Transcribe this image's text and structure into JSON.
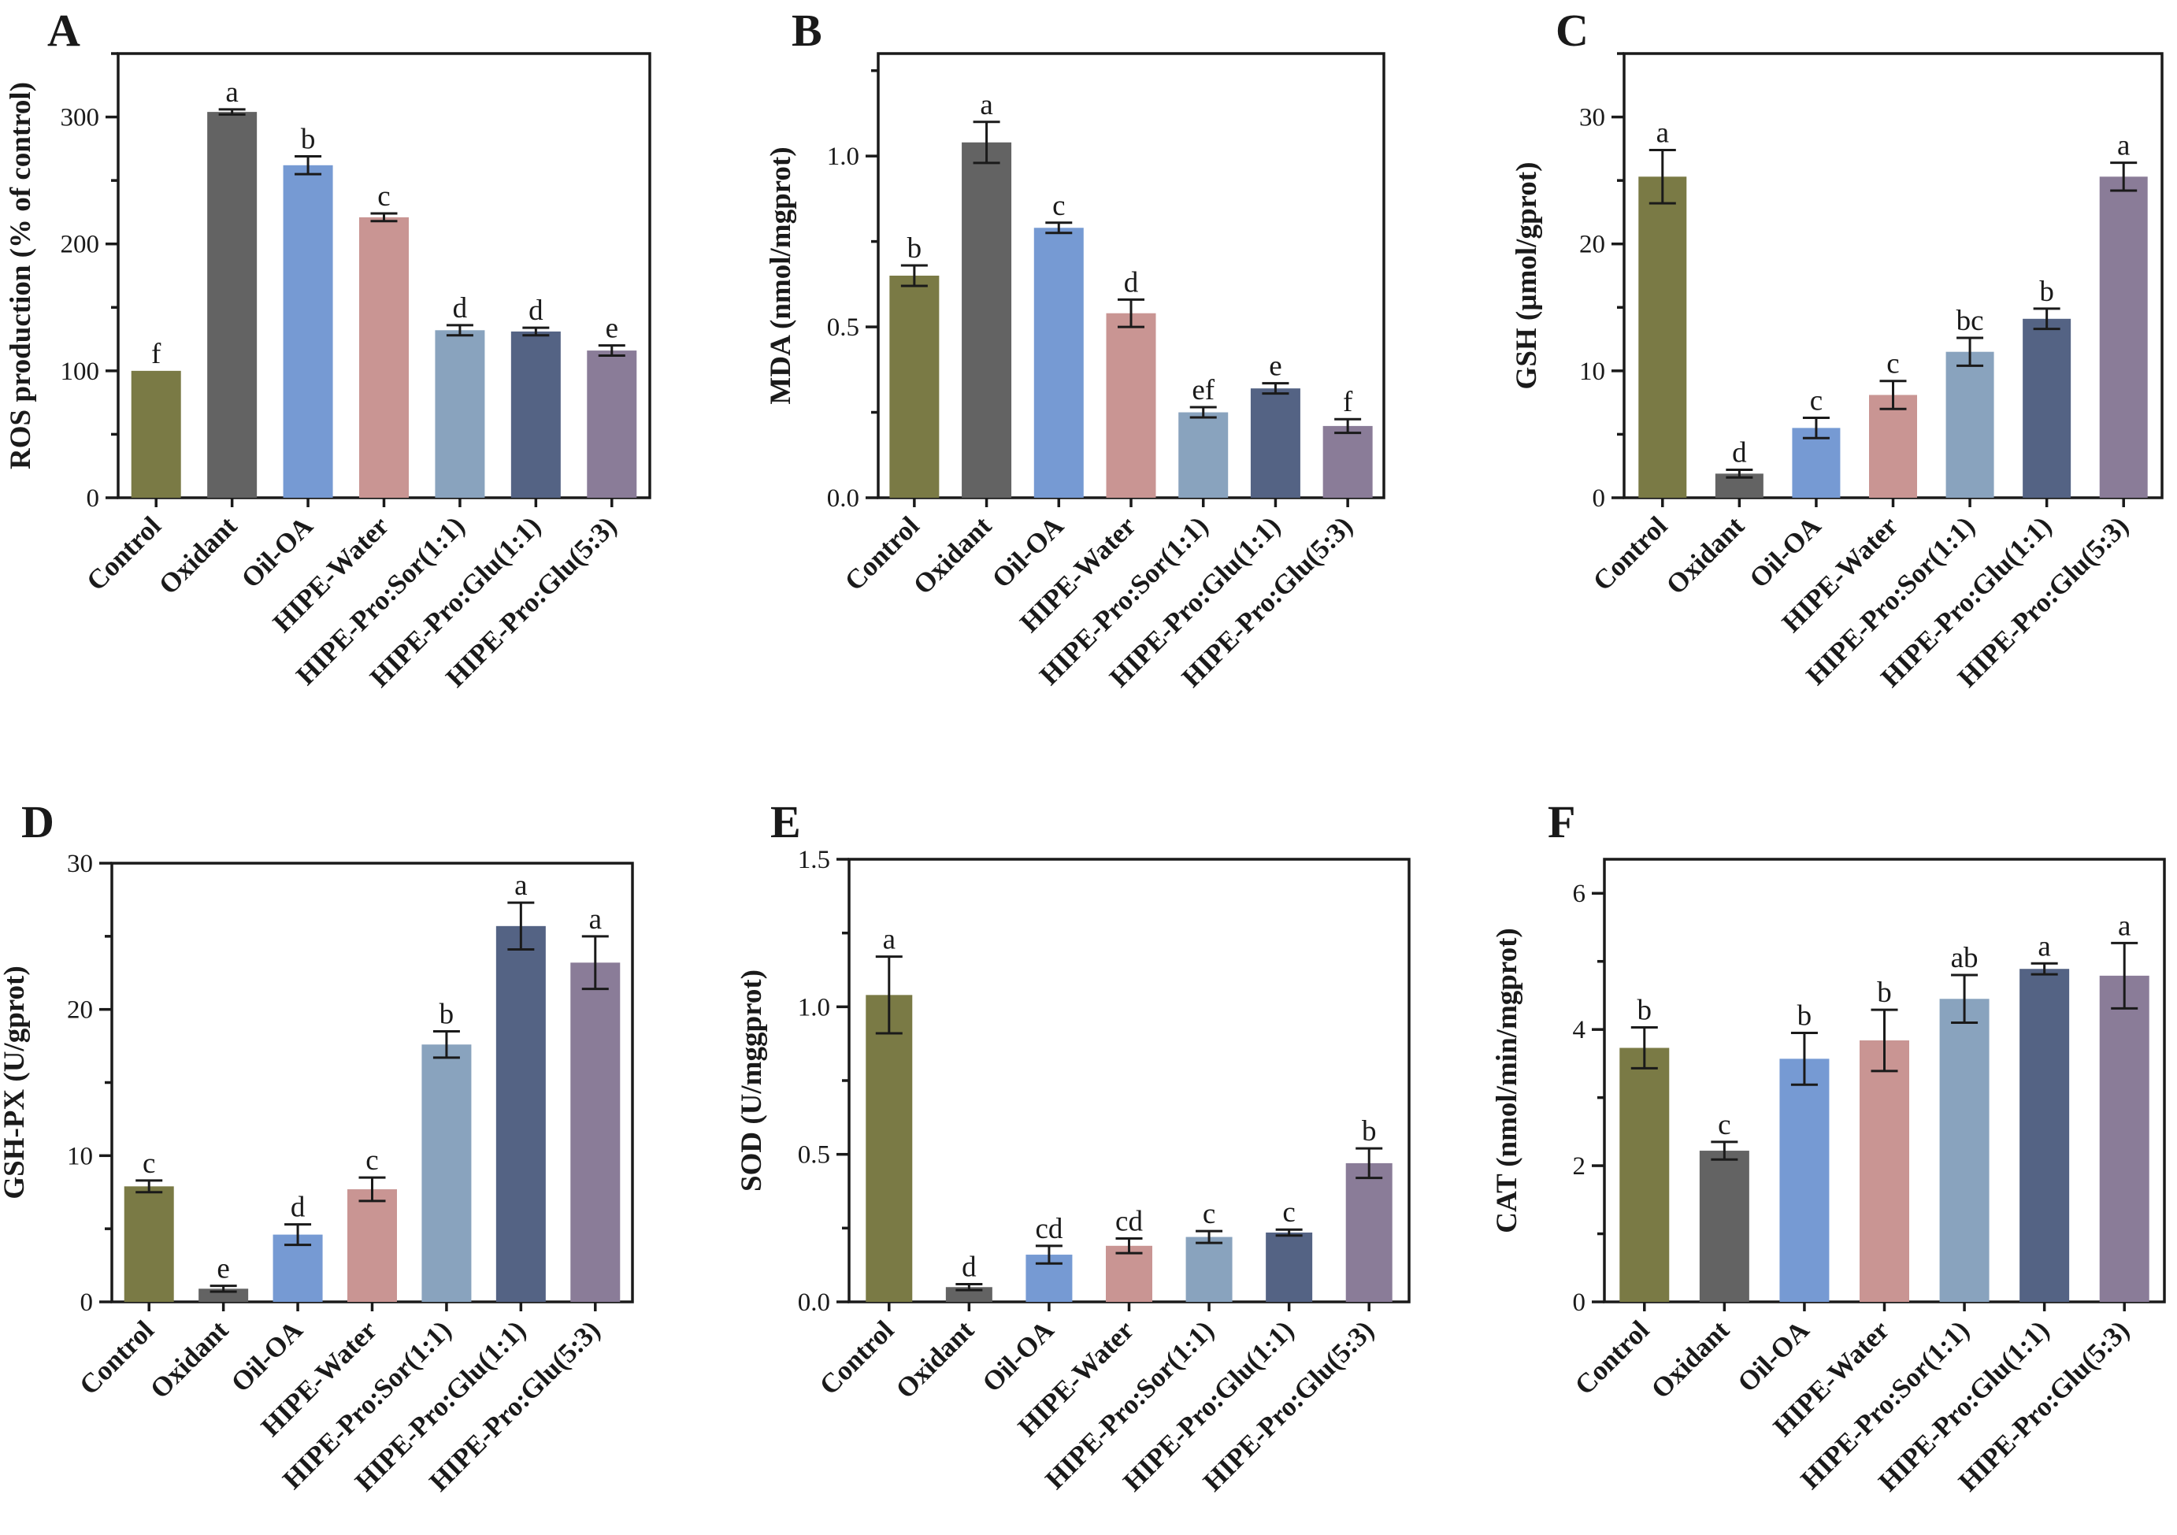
{
  "colors": [
    "#7a7a45",
    "#636363",
    "#769ad3",
    "#c99593",
    "#89a3be",
    "#546384",
    "#8a7c98"
  ],
  "categories": [
    "Control",
    "Oxidant",
    "Oil-OA",
    "HIPE-Water",
    "HIPE-Pro:Sor(1:1)",
    "HIPE-Pro:Glu(1:1)",
    "HIPE-Pro:Glu(5:3)"
  ],
  "chart_data": [
    {
      "panel": "A",
      "type": "bar",
      "ylabel": "ROS production (% of control)",
      "ylim": [
        0,
        350
      ],
      "yticks": [
        0,
        100,
        200,
        300
      ],
      "yticklabels": [
        "0",
        "100",
        "200",
        "300"
      ],
      "values": [
        100,
        304,
        262,
        221,
        132,
        131,
        116
      ],
      "errors": [
        0,
        2,
        7,
        3,
        4,
        3,
        4
      ],
      "labels": [
        "f",
        "a",
        "b",
        "c",
        "d",
        "d",
        "e"
      ]
    },
    {
      "panel": "B",
      "type": "bar",
      "ylabel": "MDA (nmol/mgprot)",
      "ylim": [
        0,
        1.3
      ],
      "yticks": [
        0,
        0.5,
        1.0
      ],
      "yticklabels": [
        "0.0",
        "0.5",
        "1.0"
      ],
      "values": [
        0.65,
        1.04,
        0.79,
        0.54,
        0.25,
        0.32,
        0.21
      ],
      "errors": [
        0.03,
        0.06,
        0.015,
        0.04,
        0.015,
        0.015,
        0.02
      ],
      "labels": [
        "b",
        "a",
        "c",
        "d",
        "ef",
        "e",
        "f"
      ]
    },
    {
      "panel": "C",
      "type": "bar",
      "ylabel": "GSH (µmol/gprot)",
      "ylim": [
        0,
        35
      ],
      "yticks": [
        0,
        10,
        20,
        30
      ],
      "yticklabels": [
        "0",
        "10",
        "20",
        "30"
      ],
      "values": [
        25.3,
        1.9,
        5.5,
        8.1,
        11.5,
        14.1,
        25.3
      ],
      "errors": [
        2.1,
        0.3,
        0.8,
        1.1,
        1.1,
        0.8,
        1.1
      ],
      "labels": [
        "a",
        "d",
        "c",
        "c",
        "bc",
        "b",
        "a"
      ]
    },
    {
      "panel": "D",
      "type": "bar",
      "ylabel": "GSH-PX  (U/gprot)",
      "ylim": [
        0,
        30
      ],
      "yticks": [
        0,
        10,
        20,
        30
      ],
      "yticklabels": [
        "0",
        "10",
        "20",
        "30"
      ],
      "values": [
        7.9,
        0.9,
        4.6,
        7.7,
        17.6,
        25.7,
        23.2
      ],
      "errors": [
        0.4,
        0.2,
        0.7,
        0.8,
        0.9,
        1.6,
        1.8
      ],
      "labels": [
        "c",
        "e",
        "d",
        "c",
        "b",
        "a",
        "a"
      ]
    },
    {
      "panel": "E",
      "type": "bar",
      "ylabel": "SOD (U/mggprot)",
      "ylim": [
        0,
        1.5
      ],
      "yticks": [
        0,
        0.5,
        1.0,
        1.5
      ],
      "yticklabels": [
        "0.0",
        "0.5",
        "1.0",
        "1.5"
      ],
      "values": [
        1.04,
        0.05,
        0.16,
        0.19,
        0.22,
        0.235,
        0.47
      ],
      "errors": [
        0.13,
        0.01,
        0.03,
        0.025,
        0.02,
        0.01,
        0.05
      ],
      "labels": [
        "a",
        "d",
        "cd",
        "cd",
        "c",
        "c",
        "b"
      ]
    },
    {
      "panel": "F",
      "type": "bar",
      "ylabel": "CAT (nmol/min/mgprot)",
      "ylim": [
        0,
        6.5
      ],
      "yticks": [
        0,
        2,
        4,
        6
      ],
      "yticklabels": [
        "0",
        "2",
        "4",
        "6"
      ],
      "values": [
        3.73,
        2.22,
        3.57,
        3.84,
        4.45,
        4.89,
        4.79
      ],
      "errors": [
        0.3,
        0.13,
        0.38,
        0.45,
        0.35,
        0.08,
        0.48
      ],
      "labels": [
        "b",
        "c",
        "b",
        "b",
        "ab",
        "a",
        "a"
      ]
    }
  ]
}
